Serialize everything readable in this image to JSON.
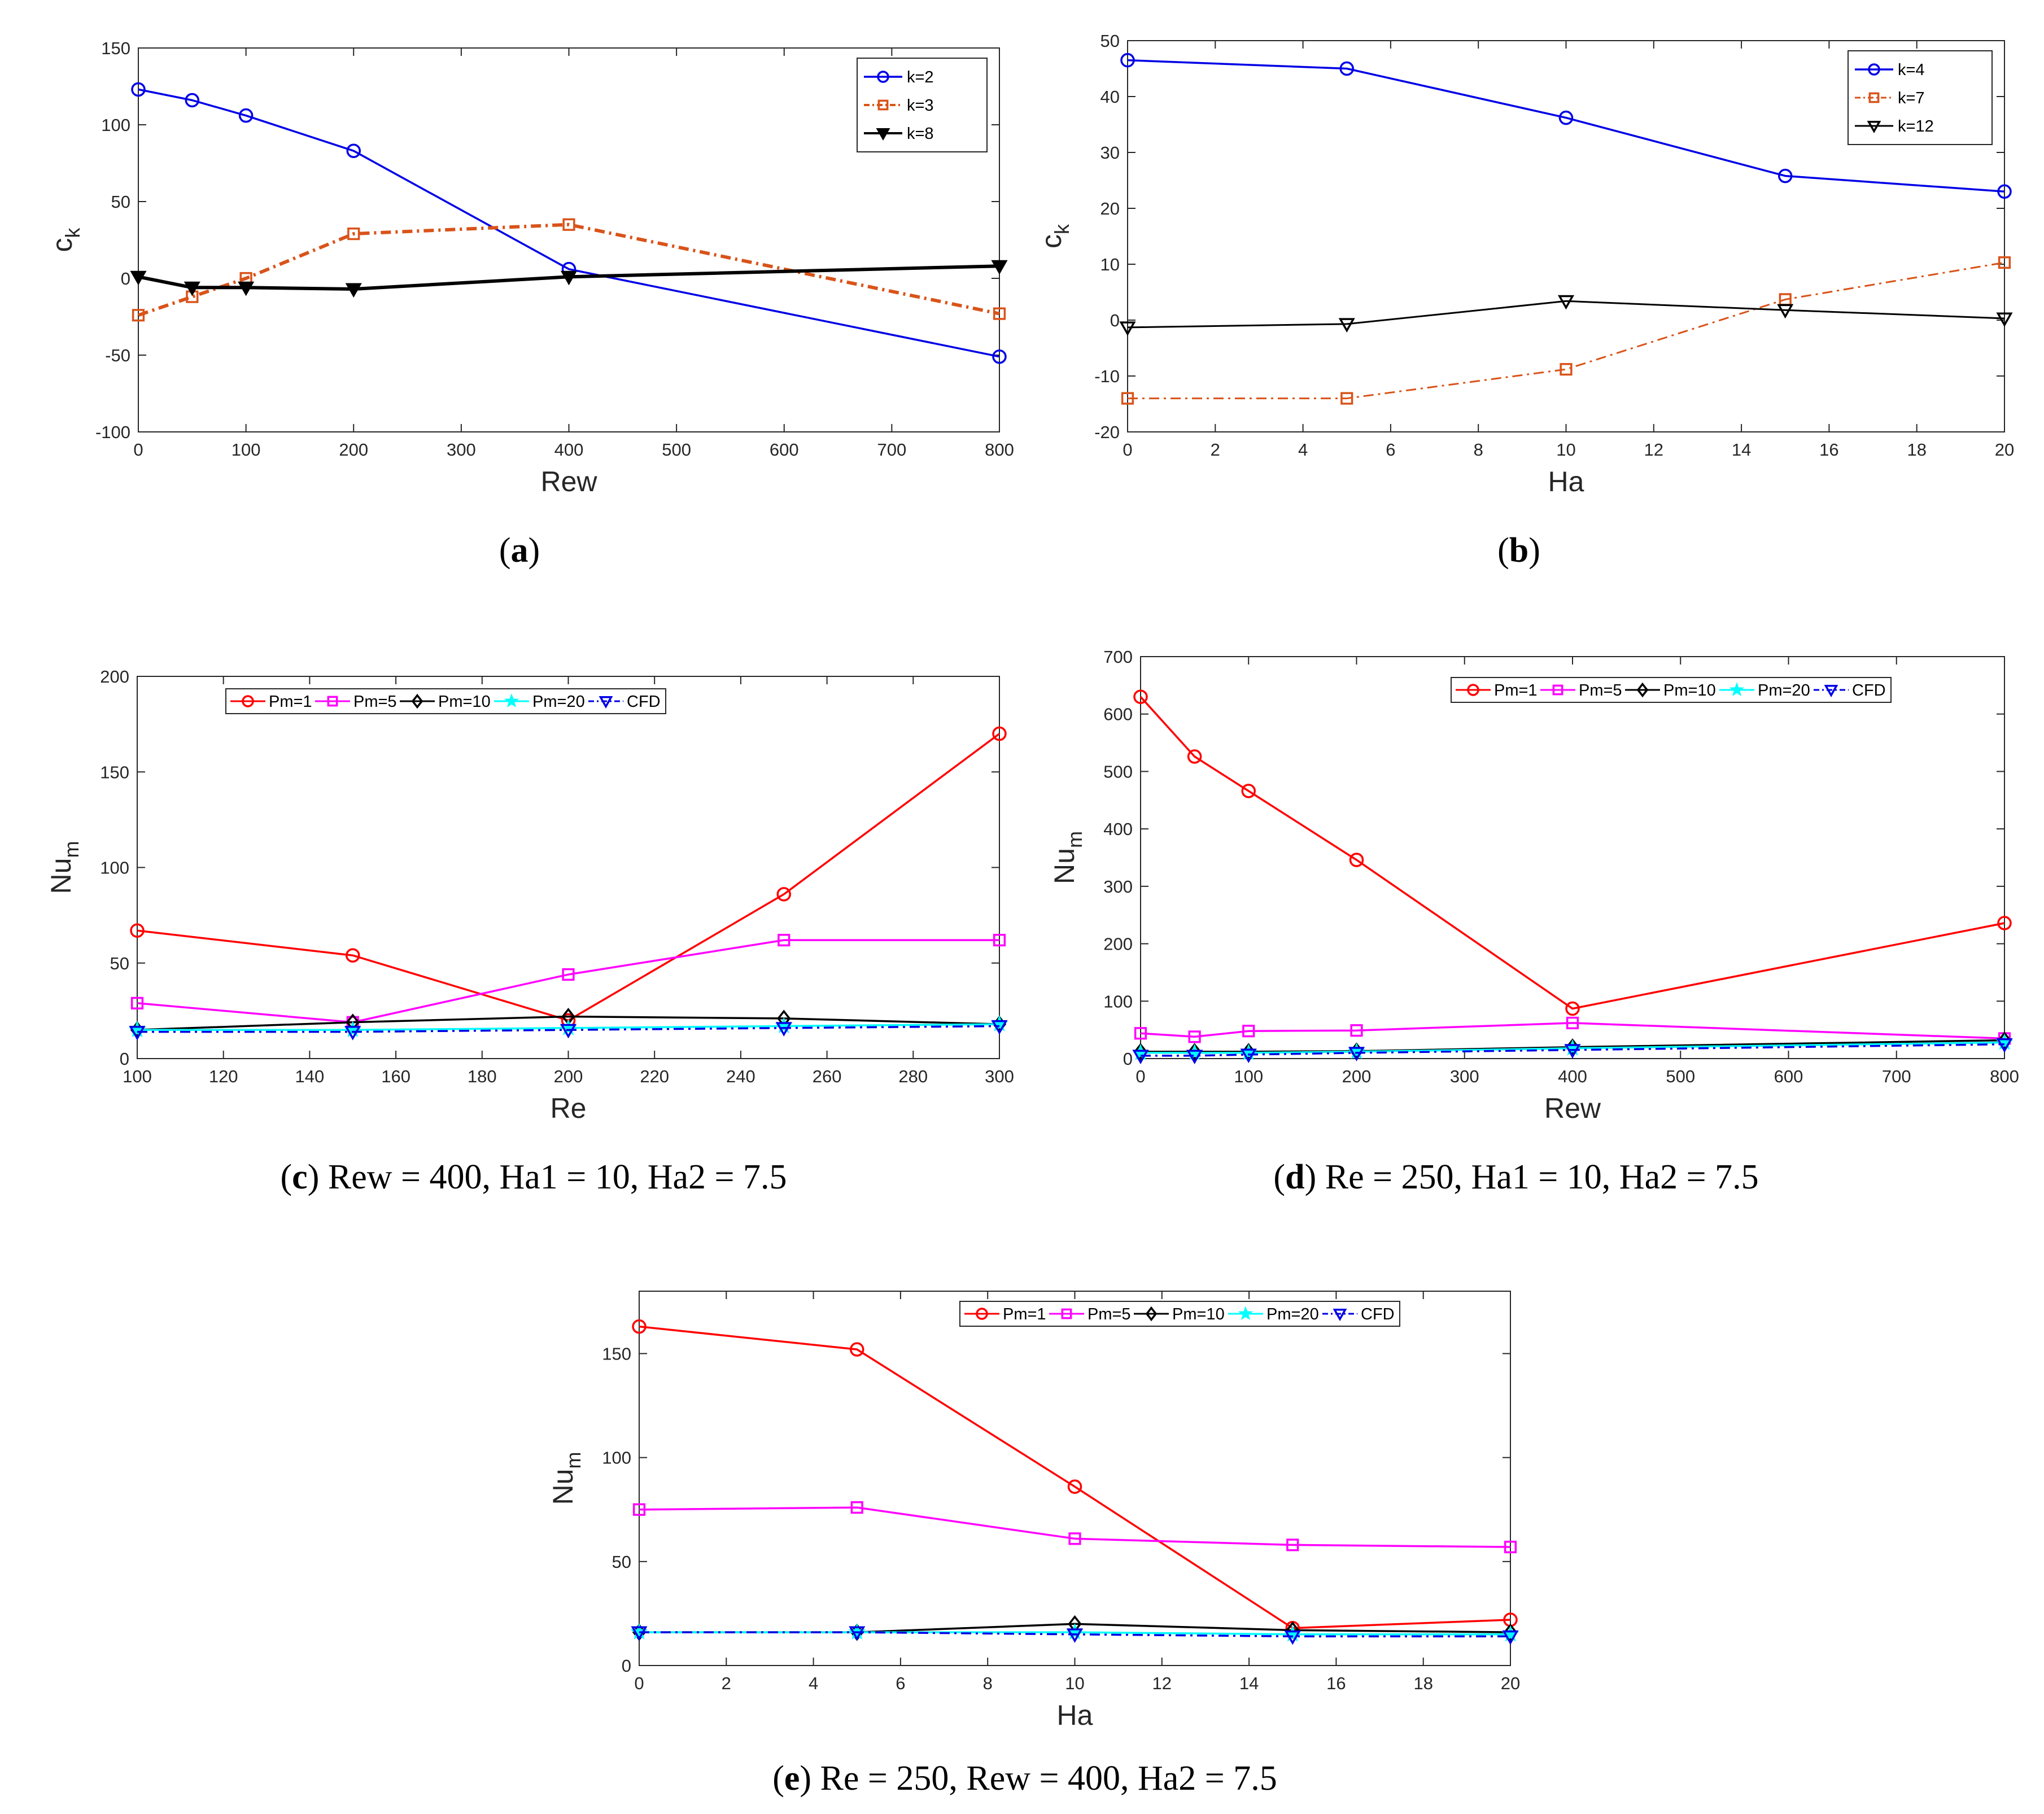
{
  "colors": {
    "blue": "#0000e6",
    "orange": "#d95319",
    "black": "#000000",
    "red": "#ff0000",
    "magenta": "#ff00ff",
    "cyan": "#00ffff"
  },
  "chart_data": [
    {
      "id": "a",
      "type": "line",
      "caption_letter": "a",
      "caption_rest": "",
      "xlabel": "Rew",
      "ylabel": "c",
      "ylabel_sub": "k",
      "xlim": [
        0,
        800
      ],
      "ylim": [
        -100,
        150
      ],
      "xticks": [
        0,
        100,
        200,
        300,
        400,
        500,
        600,
        700,
        800
      ],
      "yticks": [
        -100,
        -50,
        0,
        50,
        100,
        150
      ],
      "legend_position": "top-right",
      "grid": false,
      "series": [
        {
          "name": "k=2",
          "color": "#0000e6",
          "marker": "circle",
          "dash": "solid",
          "width": 3.5,
          "filled": false,
          "x": [
            0,
            50,
            100,
            200,
            400,
            800
          ],
          "y": [
            123,
            116,
            106,
            83,
            6,
            -51
          ]
        },
        {
          "name": "k=3",
          "color": "#d95319",
          "marker": "square",
          "dash": "dashdot",
          "width": 6,
          "filled": false,
          "x": [
            0,
            50,
            100,
            200,
            400,
            800
          ],
          "y": [
            -24,
            -12,
            0,
            29,
            35,
            -23
          ]
        },
        {
          "name": "k=8",
          "color": "#000000",
          "marker": "triangle-down",
          "dash": "solid",
          "width": 6,
          "filled": true,
          "x": [
            0,
            50,
            100,
            200,
            400,
            800
          ],
          "y": [
            1,
            -6,
            -6,
            -7,
            1,
            8
          ]
        }
      ]
    },
    {
      "id": "b",
      "type": "line",
      "caption_letter": "b",
      "caption_rest": "",
      "xlabel": "Ha",
      "ylabel": "c",
      "ylabel_sub": "k",
      "xlim": [
        0,
        20
      ],
      "ylim": [
        -20,
        50
      ],
      "xticks": [
        0,
        2,
        4,
        6,
        8,
        10,
        12,
        14,
        16,
        18,
        20
      ],
      "yticks": [
        -20,
        -10,
        0,
        10,
        20,
        30,
        40,
        50
      ],
      "legend_position": "top-right",
      "grid": false,
      "series": [
        {
          "name": "k=4",
          "color": "#0000e6",
          "marker": "circle",
          "dash": "solid",
          "width": 3.5,
          "filled": false,
          "x": [
            0,
            5,
            10,
            15,
            20
          ],
          "y": [
            46.5,
            45,
            36.2,
            25.8,
            23
          ]
        },
        {
          "name": "k=7",
          "color": "#d95319",
          "marker": "square",
          "dash": "dashdot",
          "width": 3,
          "filled": false,
          "x": [
            0,
            5,
            10,
            15,
            20
          ],
          "y": [
            -14,
            -14,
            -8.8,
            3.7,
            10.3
          ]
        },
        {
          "name": "k=12",
          "color": "#000000",
          "marker": "triangle-down",
          "dash": "solid",
          "width": 3,
          "filled": false,
          "x": [
            0,
            5,
            10,
            15,
            20
          ],
          "y": [
            -1.3,
            -0.7,
            3.4,
            1.8,
            0.3
          ]
        }
      ]
    },
    {
      "id": "c",
      "type": "line",
      "caption_letter": "c",
      "caption_rest": "Rew = 400, Ha1 = 10, Ha2 = 7.5",
      "xlabel": "Re",
      "ylabel": "Nu",
      "ylabel_sub": "m",
      "xlim": [
        100,
        300
      ],
      "ylim": [
        0,
        200
      ],
      "xticks": [
        100,
        120,
        140,
        160,
        180,
        200,
        220,
        240,
        260,
        280,
        300
      ],
      "yticks": [
        0,
        50,
        100,
        150,
        200
      ],
      "legend_position": "top",
      "grid": false,
      "series": [
        {
          "name": "Pm=1",
          "color": "#ff0000",
          "marker": "circle",
          "dash": "solid",
          "width": 3.5,
          "filled": false,
          "x": [
            100,
            150,
            200,
            250,
            300
          ],
          "y": [
            67,
            54,
            20,
            86,
            170
          ]
        },
        {
          "name": "Pm=5",
          "color": "#ff00ff",
          "marker": "square",
          "dash": "solid",
          "width": 3.5,
          "filled": false,
          "x": [
            100,
            150,
            200,
            250,
            300
          ],
          "y": [
            29,
            19,
            44,
            62,
            62
          ]
        },
        {
          "name": "Pm=10",
          "color": "#000000",
          "marker": "diamond",
          "dash": "solid",
          "width": 3.5,
          "filled": false,
          "x": [
            100,
            150,
            200,
            250,
            300
          ],
          "y": [
            15,
            19,
            22,
            21,
            18
          ]
        },
        {
          "name": "Pm=20",
          "color": "#00ffff",
          "marker": "star",
          "dash": "solid",
          "width": 3.5,
          "filled": true,
          "x": [
            100,
            150,
            200,
            250,
            300
          ],
          "y": [
            15,
            15,
            16,
            17,
            18
          ]
        },
        {
          "name": "CFD",
          "color": "#0000e6",
          "marker": "triangle-down",
          "dash": "dashdot",
          "width": 3.5,
          "filled": false,
          "x": [
            100,
            150,
            200,
            250,
            300
          ],
          "y": [
            14,
            14,
            15,
            16,
            17
          ]
        }
      ]
    },
    {
      "id": "d",
      "type": "line",
      "caption_letter": "d",
      "caption_rest": "Re = 250, Ha1 = 10, Ha2 = 7.5",
      "xlabel": "Rew",
      "ylabel": "Nu",
      "ylabel_sub": "m",
      "xlim": [
        0,
        800
      ],
      "ylim": [
        0,
        700
      ],
      "xticks": [
        0,
        100,
        200,
        300,
        400,
        500,
        600,
        700,
        800
      ],
      "yticks": [
        0,
        100,
        200,
        300,
        400,
        500,
        600,
        700
      ],
      "legend_position": "top",
      "grid": false,
      "series": [
        {
          "name": "Pm=1",
          "color": "#ff0000",
          "marker": "circle",
          "dash": "solid",
          "width": 3.5,
          "filled": false,
          "x": [
            0,
            50,
            100,
            200,
            400,
            800
          ],
          "y": [
            630,
            526,
            466,
            346,
            87,
            236
          ]
        },
        {
          "name": "Pm=5",
          "color": "#ff00ff",
          "marker": "square",
          "dash": "solid",
          "width": 3.5,
          "filled": false,
          "x": [
            0,
            50,
            100,
            200,
            400,
            800
          ],
          "y": [
            44,
            38,
            48,
            49,
            62,
            35
          ]
        },
        {
          "name": "Pm=10",
          "color": "#000000",
          "marker": "diamond",
          "dash": "solid",
          "width": 3.5,
          "filled": false,
          "x": [
            0,
            50,
            100,
            200,
            400,
            800
          ],
          "y": [
            12,
            12,
            12,
            13,
            20,
            32
          ]
        },
        {
          "name": "Pm=20",
          "color": "#00ffff",
          "marker": "star",
          "dash": "solid",
          "width": 3.5,
          "filled": true,
          "x": [
            0,
            50,
            100,
            200,
            400,
            800
          ],
          "y": [
            10,
            10,
            10,
            12,
            18,
            28
          ]
        },
        {
          "name": "CFD",
          "color": "#0000e6",
          "marker": "triangle-down",
          "dash": "dashdot",
          "width": 3.5,
          "filled": false,
          "x": [
            0,
            50,
            100,
            200,
            400,
            800
          ],
          "y": [
            5,
            5,
            7,
            10,
            15,
            25
          ]
        }
      ]
    },
    {
      "id": "e",
      "type": "line",
      "caption_letter": "e",
      "caption_rest": "Re = 250, Rew = 400, Ha2 = 7.5",
      "xlabel": "Ha",
      "ylabel": "Nu",
      "ylabel_sub": "m",
      "xlim": [
        0,
        20
      ],
      "ylim": [
        0,
        180
      ],
      "xticks": [
        0,
        2,
        4,
        6,
        8,
        10,
        12,
        14,
        16,
        18,
        20
      ],
      "yticks": [
        0,
        50,
        100,
        150
      ],
      "legend_position": "top",
      "grid": false,
      "series": [
        {
          "name": "Pm=1",
          "color": "#ff0000",
          "marker": "circle",
          "dash": "solid",
          "width": 3.5,
          "filled": false,
          "x": [
            0,
            5,
            10,
            15,
            20
          ],
          "y": [
            163,
            152,
            86,
            18,
            22
          ]
        },
        {
          "name": "Pm=5",
          "color": "#ff00ff",
          "marker": "square",
          "dash": "solid",
          "width": 3.5,
          "filled": false,
          "x": [
            0,
            5,
            10,
            15,
            20
          ],
          "y": [
            75,
            76,
            61,
            58,
            57
          ]
        },
        {
          "name": "Pm=10",
          "color": "#000000",
          "marker": "diamond",
          "dash": "solid",
          "width": 3.5,
          "filled": false,
          "x": [
            0,
            5,
            10,
            15,
            20
          ],
          "y": [
            16,
            16,
            20,
            17,
            16
          ]
        },
        {
          "name": "Pm=20",
          "color": "#00ffff",
          "marker": "star",
          "dash": "solid",
          "width": 3.5,
          "filled": true,
          "x": [
            0,
            5,
            10,
            15,
            20
          ],
          "y": [
            16,
            16,
            16,
            15,
            15
          ]
        },
        {
          "name": "CFD",
          "color": "#0000e6",
          "marker": "triangle-down",
          "dash": "dashdot",
          "width": 3.5,
          "filled": false,
          "x": [
            0,
            5,
            10,
            15,
            20
          ],
          "y": [
            16,
            16,
            15,
            14,
            14
          ]
        }
      ]
    }
  ]
}
